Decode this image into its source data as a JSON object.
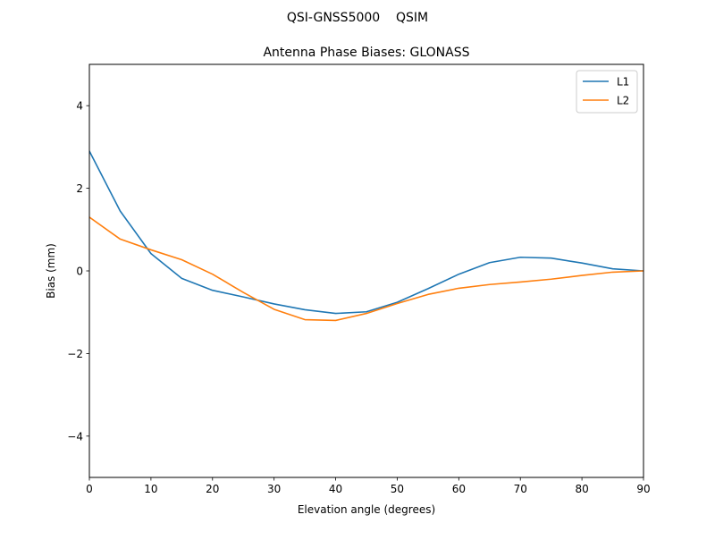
{
  "figure": {
    "suptitle": "QSI-GNSS5000    QSIM"
  },
  "chart_data": {
    "type": "line",
    "title": "Antenna Phase Biases: GLONASS",
    "xlabel": "Elevation angle (degrees)",
    "ylabel": "Bias (mm)",
    "xlim": [
      0,
      90
    ],
    "ylim": [
      -5,
      5
    ],
    "xticks": [
      0,
      10,
      20,
      30,
      40,
      50,
      60,
      70,
      80,
      90
    ],
    "yticks": [
      -4,
      -2,
      0,
      2,
      4
    ],
    "xtick_labels": [
      "0",
      "10",
      "20",
      "30",
      "40",
      "50",
      "60",
      "70",
      "80",
      "90"
    ],
    "ytick_labels": [
      "−4",
      "−2",
      "0",
      "2",
      "4"
    ],
    "grid": false,
    "legend_position": "top-right",
    "x": [
      0,
      5,
      10,
      15,
      20,
      25,
      30,
      35,
      40,
      45,
      50,
      55,
      60,
      65,
      70,
      75,
      80,
      85,
      90
    ],
    "series": [
      {
        "name": "L1",
        "color": "#1f77b4",
        "values": [
          2.9,
          1.45,
          0.42,
          -0.18,
          -0.47,
          -0.63,
          -0.8,
          -0.94,
          -1.03,
          -0.99,
          -0.76,
          -0.43,
          -0.08,
          0.2,
          0.33,
          0.31,
          0.19,
          0.05,
          0.0
        ]
      },
      {
        "name": "L2",
        "color": "#ff7f0e",
        "values": [
          1.3,
          0.77,
          0.51,
          0.27,
          -0.08,
          -0.52,
          -0.93,
          -1.18,
          -1.2,
          -1.03,
          -0.79,
          -0.57,
          -0.42,
          -0.33,
          -0.27,
          -0.2,
          -0.11,
          -0.03,
          0.0
        ]
      }
    ]
  }
}
